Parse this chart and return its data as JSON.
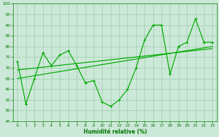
{
  "xlabel": "Humidité relative (%)",
  "background_color": "#cce8d8",
  "grid_color": "#99ccaa",
  "line_color": "#00aa00",
  "xlim": [
    -0.5,
    23.5
  ],
  "ylim": [
    45,
    100
  ],
  "yticks": [
    45,
    50,
    55,
    60,
    65,
    70,
    75,
    80,
    85,
    90,
    95,
    100
  ],
  "xticks": [
    0,
    1,
    2,
    3,
    4,
    5,
    6,
    7,
    8,
    9,
    10,
    11,
    12,
    13,
    14,
    15,
    16,
    17,
    18,
    19,
    20,
    21,
    22,
    23
  ],
  "series1_x": [
    0,
    1,
    2,
    3,
    4,
    5,
    6,
    7,
    8,
    9,
    10,
    11,
    12,
    13,
    14,
    15,
    16,
    17,
    18,
    19,
    20,
    21,
    22,
    23
  ],
  "series1_y": [
    73,
    53,
    65,
    77,
    71,
    76,
    78,
    71,
    63,
    64,
    54,
    52,
    55,
    60,
    70,
    83,
    90,
    90,
    67,
    80,
    82,
    93,
    82,
    82
  ],
  "series2_x": [
    0,
    23
  ],
  "series2_y": [
    65,
    80
  ],
  "series3_x": [
    0,
    23
  ],
  "series3_y": [
    69,
    79
  ]
}
